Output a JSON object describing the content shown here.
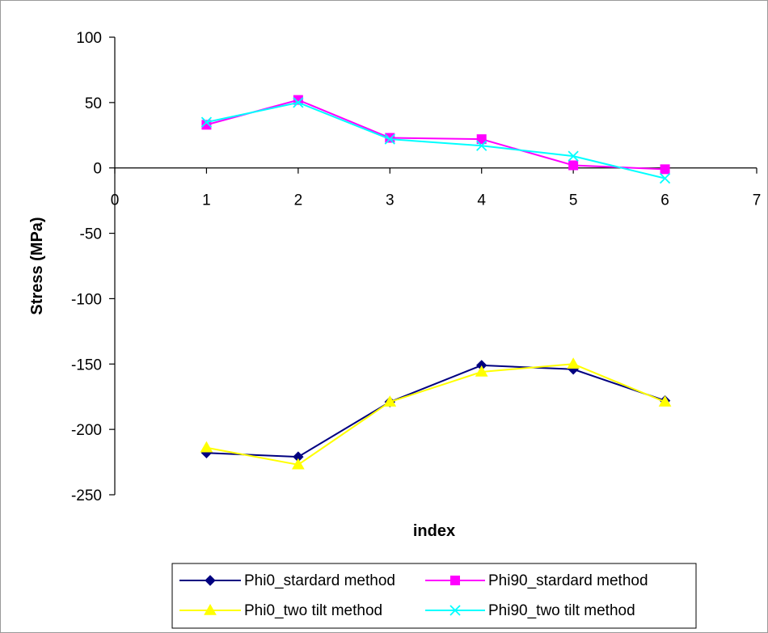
{
  "chart_data": {
    "type": "line",
    "title": "",
    "xlabel": "index",
    "ylabel": "Stress (MPa)",
    "xlim": [
      0,
      7
    ],
    "ylim": [
      -250,
      100
    ],
    "x_ticks": [
      "0",
      "1",
      "2",
      "3",
      "4",
      "5",
      "6",
      "7"
    ],
    "y_ticks": [
      "100",
      "50",
      "0",
      "-50",
      "-100",
      "-150",
      "-200",
      "-250"
    ],
    "grid": false,
    "legend_position": "bottom",
    "x": [
      1,
      2,
      3,
      4,
      5,
      6
    ],
    "series": [
      {
        "name": "Phi0_stardard method",
        "marker": "diamond",
        "color": "#000080",
        "values": [
          -218,
          -221,
          -179,
          -151,
          -154,
          -178
        ]
      },
      {
        "name": "Phi90_stardard method",
        "marker": "square",
        "color": "#ff00ff",
        "values": [
          33,
          52,
          23,
          22,
          2,
          -1
        ]
      },
      {
        "name": "Phi0_two tilt method",
        "marker": "triangle",
        "color": "#ffff00",
        "values": [
          -214,
          -227,
          -179,
          -156,
          -150,
          -179
        ]
      },
      {
        "name": "Phi90_two tilt method",
        "marker": "x",
        "color": "#00ffff",
        "values": [
          35,
          50,
          22,
          17,
          9,
          -8
        ]
      }
    ]
  }
}
